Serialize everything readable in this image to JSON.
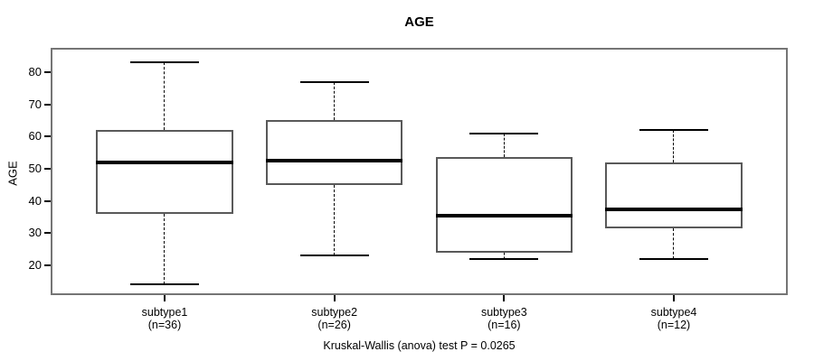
{
  "title": "AGE",
  "y_axis_label": "AGE",
  "caption": "Kruskal-Wallis (anova) test P = 0.0265",
  "chart_data": {
    "type": "boxplot",
    "title": "AGE",
    "xlabel": "",
    "ylabel": "AGE",
    "ylim": [
      11.3,
      87
    ],
    "yticks": [
      20,
      30,
      40,
      50,
      60,
      70,
      80
    ],
    "grid": false,
    "legend": "none",
    "categories": [
      "subtype1",
      "subtype2",
      "subtype3",
      "subtype4"
    ],
    "category_counts": [
      "(n=36)",
      "(n=26)",
      "(n=16)",
      "(n=12)"
    ],
    "series": [
      {
        "name": "subtype1",
        "n": 36,
        "min": 14,
        "q1": 36,
        "median": 52,
        "q3": 62,
        "max": 83
      },
      {
        "name": "subtype2",
        "n": 26,
        "min": 23,
        "q1": 45,
        "median": 52.5,
        "q3": 65,
        "max": 77
      },
      {
        "name": "subtype3",
        "n": 16,
        "min": 22,
        "q1": 24,
        "median": 35.5,
        "q3": 53.5,
        "max": 61
      },
      {
        "name": "subtype4",
        "n": 12,
        "min": 22,
        "q1": 31.5,
        "median": 37.5,
        "q3": 52,
        "max": 62
      }
    ],
    "annotation": "Kruskal-Wallis (anova) test P = 0.0265",
    "colors": {
      "text": "#000000",
      "frame_border": "#757575",
      "box_border": "#595959",
      "median": "#000000",
      "whisker": "#000000",
      "background": "#ffffff"
    }
  }
}
